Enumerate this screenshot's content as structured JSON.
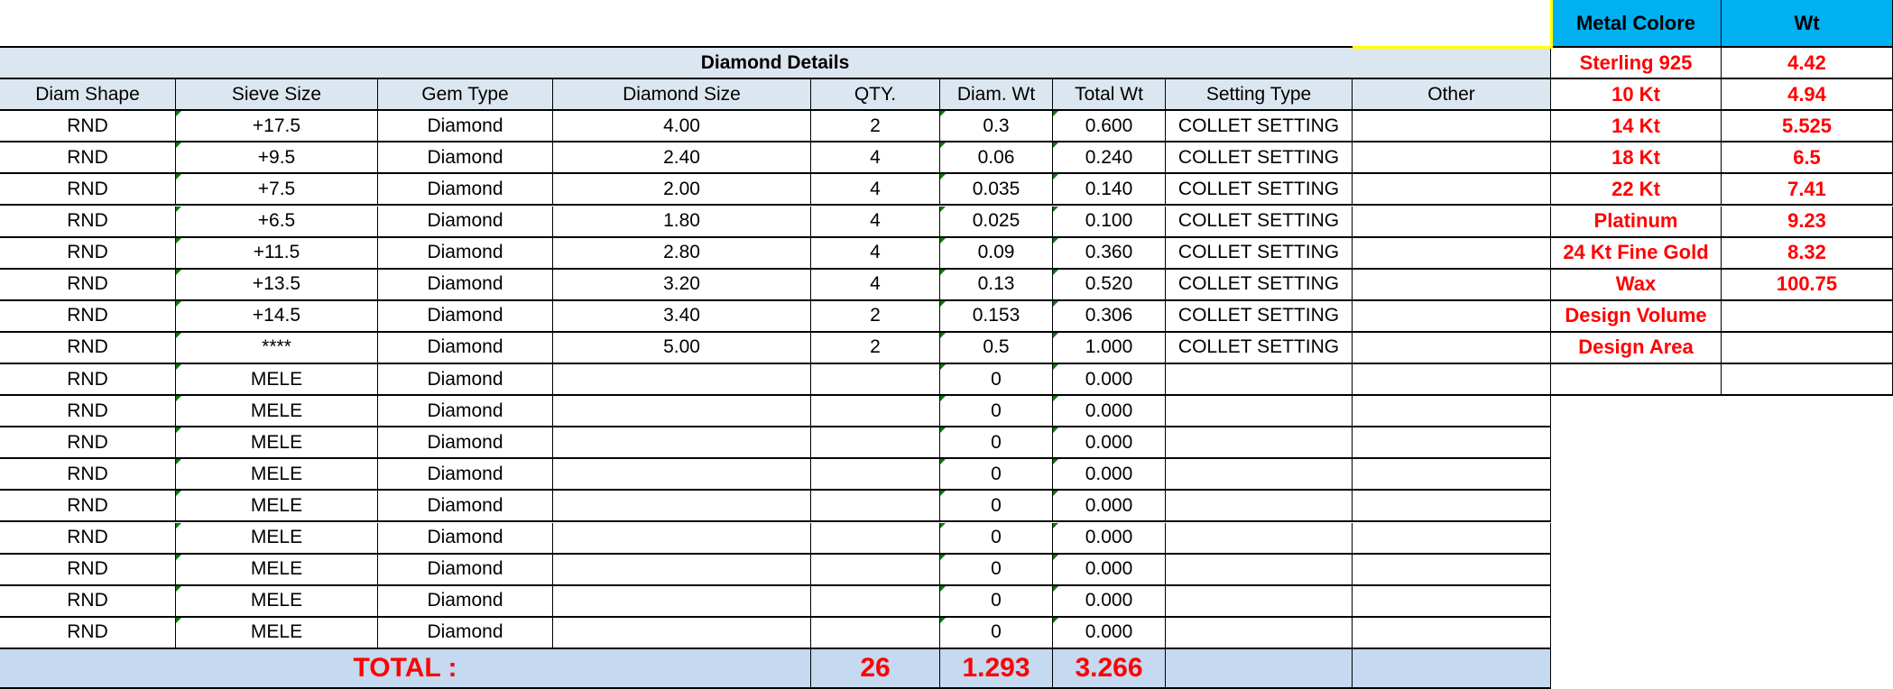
{
  "diamond_details": {
    "title": "Diamond Details",
    "columns": [
      "Diam Shape",
      "Sieve Size",
      "Gem Type",
      "Diamond Size",
      "QTY.",
      "Diam. Wt",
      "Total Wt",
      "Setting Type",
      "Other"
    ],
    "rows": [
      [
        "RND",
        "+17.5",
        "Diamond",
        "4.00",
        "2",
        "0.3",
        "0.600",
        "COLLET SETTING",
        ""
      ],
      [
        "RND",
        "+9.5",
        "Diamond",
        "2.40",
        "4",
        "0.06",
        "0.240",
        "COLLET SETTING",
        ""
      ],
      [
        "RND",
        "+7.5",
        "Diamond",
        "2.00",
        "4",
        "0.035",
        "0.140",
        "COLLET SETTING",
        ""
      ],
      [
        "RND",
        "+6.5",
        "Diamond",
        "1.80",
        "4",
        "0.025",
        "0.100",
        "COLLET SETTING",
        ""
      ],
      [
        "RND",
        "+11.5",
        "Diamond",
        "2.80",
        "4",
        "0.09",
        "0.360",
        "COLLET SETTING",
        ""
      ],
      [
        "RND",
        "+13.5",
        "Diamond",
        "3.20",
        "4",
        "0.13",
        "0.520",
        "COLLET SETTING",
        ""
      ],
      [
        "RND",
        "+14.5",
        "Diamond",
        "3.40",
        "2",
        "0.153",
        "0.306",
        "COLLET SETTING",
        ""
      ],
      [
        "RND",
        "****",
        "Diamond",
        "5.00",
        "2",
        "0.5",
        "1.000",
        "COLLET SETTING",
        ""
      ],
      [
        "RND",
        "MELE",
        "Diamond",
        "",
        "",
        "0",
        "0.000",
        "",
        ""
      ],
      [
        "RND",
        "MELE",
        "Diamond",
        "",
        "",
        "0",
        "0.000",
        "",
        ""
      ],
      [
        "RND",
        "MELE",
        "Diamond",
        "",
        "",
        "0",
        "0.000",
        "",
        ""
      ],
      [
        "RND",
        "MELE",
        "Diamond",
        "",
        "",
        "0",
        "0.000",
        "",
        ""
      ],
      [
        "RND",
        "MELE",
        "Diamond",
        "",
        "",
        "0",
        "0.000",
        "",
        ""
      ],
      [
        "RND",
        "MELE",
        "Diamond",
        "",
        "",
        "0",
        "0.000",
        "",
        ""
      ],
      [
        "RND",
        "MELE",
        "Diamond",
        "",
        "",
        "0",
        "0.000",
        "",
        ""
      ],
      [
        "RND",
        "MELE",
        "Diamond",
        "",
        "",
        "0",
        "0.000",
        "",
        ""
      ],
      [
        "RND",
        "MELE",
        "Diamond",
        "",
        "",
        "0",
        "0.000",
        "",
        ""
      ]
    ],
    "total": {
      "label": "TOTAL :",
      "qty": "26",
      "diam_wt": "1.293",
      "total_wt": "3.266"
    }
  },
  "metal": {
    "columns": [
      "Metal Colore",
      "Wt"
    ],
    "rows": [
      [
        "Sterling 925",
        "4.42"
      ],
      [
        "10 Kt",
        "4.94"
      ],
      [
        "14 Kt",
        "5.525"
      ],
      [
        "18 Kt",
        "6.5"
      ],
      [
        "22 Kt",
        "7.41"
      ],
      [
        "Platinum",
        "9.23"
      ],
      [
        "24 Kt Fine Gold",
        "8.32"
      ],
      [
        "Wax",
        "100.75"
      ],
      [
        "Design Volume",
        ""
      ],
      [
        "Design Area",
        ""
      ],
      [
        "",
        ""
      ]
    ]
  },
  "colors": {
    "header_bg": "#dce6f1",
    "total_bg": "#c5d9f1",
    "metal_header_bg": "#00b0f0",
    "accent_red": "#ff0000"
  }
}
